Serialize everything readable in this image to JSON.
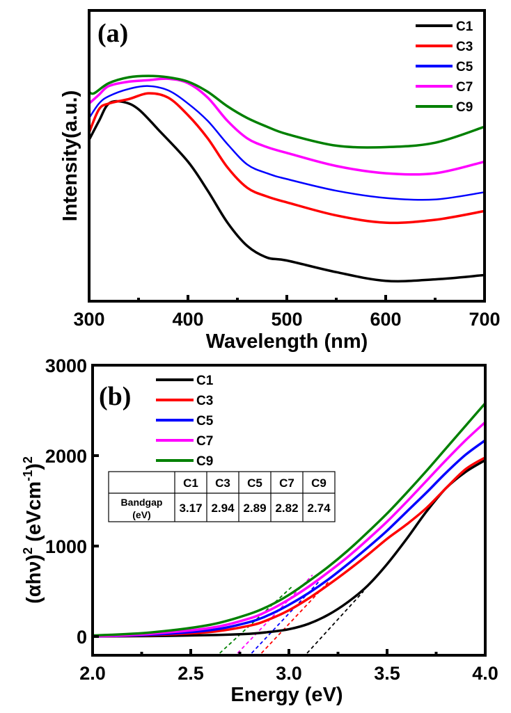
{
  "chart_data": [
    {
      "panel": "(a)",
      "type": "line",
      "title": "",
      "xlabel": "Wavelength (nm)",
      "ylabel": "Intensity(a.u.)",
      "xlim": [
        300,
        700
      ],
      "ylim": [
        0,
        100
      ],
      "xticks": [
        300,
        400,
        500,
        600,
        700
      ],
      "xtick_labels": [
        "300",
        "400",
        "500",
        "600",
        "700"
      ],
      "x_minor_ticks": [
        350,
        450,
        550,
        650
      ],
      "yticks_shown": false,
      "grid": false,
      "legend_position": "top-right",
      "series": [
        {
          "name": "C1",
          "color": "#000000",
          "x": [
            300,
            310,
            320,
            335,
            350,
            370,
            400,
            420,
            440,
            460,
            480,
            500,
            550,
            600,
            650,
            700
          ],
          "y": [
            55.5,
            62,
            68,
            68.5,
            66,
            59,
            48,
            38,
            27,
            19,
            15,
            14,
            10,
            7,
            7.5,
            9
          ]
        },
        {
          "name": "C3",
          "color": "#ff0000",
          "x": [
            300,
            310,
            320,
            340,
            360,
            380,
            400,
            420,
            440,
            460,
            480,
            500,
            550,
            600,
            650,
            700
          ],
          "y": [
            58,
            66,
            68,
            69.5,
            71.5,
            70,
            64,
            56,
            46,
            39,
            36,
            34,
            29.5,
            27,
            28,
            31
          ]
        },
        {
          "name": "C5",
          "color": "#0000ff",
          "x": [
            300,
            310,
            320,
            340,
            360,
            380,
            400,
            420,
            440,
            460,
            480,
            500,
            550,
            600,
            650,
            700
          ],
          "y": [
            63,
            68,
            70.5,
            73,
            74,
            72.5,
            68,
            62,
            54,
            47,
            44,
            42,
            38,
            35.5,
            35,
            37.5
          ]
        },
        {
          "name": "C7",
          "color": "#ff00ff",
          "x": [
            300,
            310,
            320,
            340,
            360,
            380,
            400,
            420,
            440,
            460,
            480,
            500,
            550,
            600,
            650,
            700
          ],
          "y": [
            68,
            71,
            74,
            75.5,
            76,
            76.5,
            75,
            70,
            62,
            56,
            53,
            51,
            46.5,
            44,
            44,
            48
          ]
        },
        {
          "name": "C9",
          "color": "#008000",
          "x": [
            300,
            305,
            320,
            340,
            360,
            380,
            400,
            420,
            440,
            460,
            480,
            500,
            550,
            600,
            650,
            700
          ],
          "y": [
            72,
            71.5,
            75,
            77,
            77.5,
            77,
            75.5,
            72,
            67,
            63,
            60,
            57.5,
            53.5,
            53,
            54.5,
            60
          ]
        }
      ]
    },
    {
      "panel": "(b)",
      "type": "line",
      "title": "",
      "xlabel": "Energy (eV)",
      "ylabel": "(αhν)² (eVcm⁻¹)²",
      "ylabel_parts": {
        "main": "(αhν)",
        "sup1": "2",
        "units": " (eVcm",
        "sup2": "-1",
        "close": ")",
        "sup3": "2"
      },
      "xlim": [
        2.0,
        4.0
      ],
      "ylim": [
        -200,
        3000
      ],
      "xticks": [
        2.0,
        2.5,
        3.0,
        3.5,
        4.0
      ],
      "xtick_labels": [
        "2.0",
        "2.5",
        "3.0",
        "3.5",
        "4.0"
      ],
      "x_minor_ticks": [
        2.25,
        2.75,
        3.25,
        3.75
      ],
      "yticks": [
        0,
        1000,
        2000,
        3000
      ],
      "ytick_labels": [
        "0",
        "1000",
        "2000",
        "3000"
      ],
      "grid": false,
      "legend_position": "top-left",
      "series": [
        {
          "name": "C1",
          "color": "#000000",
          "x": [
            2.0,
            2.3,
            2.6,
            2.8,
            2.9,
            3.0,
            3.1,
            3.2,
            3.3,
            3.4,
            3.5,
            3.6,
            3.7,
            3.8,
            3.9,
            4.0
          ],
          "y": [
            0,
            5,
            15,
            30,
            50,
            80,
            140,
            240,
            380,
            560,
            800,
            1080,
            1380,
            1640,
            1820,
            1950
          ]
        },
        {
          "name": "C3",
          "color": "#ff0000",
          "x": [
            2.0,
            2.3,
            2.6,
            2.8,
            2.9,
            3.0,
            3.1,
            3.2,
            3.3,
            3.4,
            3.5,
            3.6,
            3.7,
            3.8,
            3.9,
            4.0
          ],
          "y": [
            0,
            15,
            50,
            120,
            190,
            290,
            420,
            570,
            730,
            900,
            1080,
            1240,
            1420,
            1640,
            1850,
            1980
          ]
        },
        {
          "name": "C5",
          "color": "#0000ff",
          "x": [
            2.0,
            2.3,
            2.6,
            2.8,
            2.9,
            3.0,
            3.1,
            3.2,
            3.3,
            3.4,
            3.5,
            3.6,
            3.7,
            3.8,
            3.9,
            4.0
          ],
          "y": [
            0,
            20,
            70,
            160,
            240,
            350,
            480,
            630,
            800,
            980,
            1170,
            1380,
            1590,
            1810,
            2010,
            2170
          ]
        },
        {
          "name": "C7",
          "color": "#ff00ff",
          "x": [
            2.0,
            2.3,
            2.6,
            2.8,
            2.9,
            3.0,
            3.1,
            3.2,
            3.3,
            3.4,
            3.5,
            3.6,
            3.7,
            3.8,
            3.9,
            4.0
          ],
          "y": [
            0,
            30,
            95,
            200,
            290,
            410,
            550,
            710,
            880,
            1070,
            1270,
            1490,
            1720,
            1950,
            2170,
            2370
          ]
        },
        {
          "name": "C9",
          "color": "#008000",
          "x": [
            2.0,
            2.3,
            2.6,
            2.8,
            2.9,
            3.0,
            3.1,
            3.2,
            3.3,
            3.4,
            3.5,
            3.6,
            3.7,
            3.8,
            3.9,
            4.0
          ],
          "y": [
            10,
            45,
            130,
            250,
            340,
            460,
            610,
            770,
            950,
            1150,
            1360,
            1590,
            1830,
            2080,
            2330,
            2580
          ]
        }
      ],
      "tangent_lines": [
        {
          "name": "C1",
          "color": "#000000",
          "x_intercept": 3.17,
          "to": [
            3.38,
            500
          ]
        },
        {
          "name": "C3",
          "color": "#ff0000",
          "x_intercept": 2.94,
          "to": [
            3.2,
            600
          ]
        },
        {
          "name": "C5",
          "color": "#0000ff",
          "x_intercept": 2.89,
          "to": [
            3.15,
            600
          ]
        },
        {
          "name": "C7",
          "color": "#ff00ff",
          "x_intercept": 2.82,
          "to": [
            3.12,
            680
          ]
        },
        {
          "name": "C9",
          "color": "#008000",
          "x_intercept": 2.74,
          "to": [
            3.02,
            560
          ]
        }
      ],
      "inset_table": {
        "columns": [
          "",
          "C1",
          "C3",
          "C5",
          "C7",
          "C9"
        ],
        "row_label_line1": "Bandgap",
        "row_label_line2": "(eV)",
        "values": [
          "3.17",
          "2.94",
          "2.89",
          "2.82",
          "2.74"
        ]
      }
    }
  ]
}
